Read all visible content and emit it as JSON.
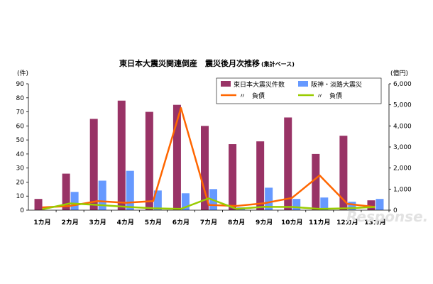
{
  "chart_data": {
    "type": "bar",
    "title": "東日本大震災関連倒産　震災後月次推移",
    "subtitle": "(集計ベース)",
    "ylabel_left": "(件)",
    "ylabel_right": "(億円)",
    "ylim_left": [
      0,
      90
    ],
    "ylim_right": [
      0,
      6000
    ],
    "yticks_left": [
      "0",
      "10",
      "20",
      "30",
      "40",
      "50",
      "60",
      "70",
      "80",
      "90"
    ],
    "yticks_right": [
      "0",
      "1,000",
      "2,000",
      "3,000",
      "4,000",
      "5,000",
      "6,000"
    ],
    "categories": [
      "1カ月",
      "2カ月",
      "3カ月",
      "4カ月",
      "5カ月",
      "6カ月",
      "7カ月",
      "8カ月",
      "9カ月",
      "10カ月",
      "11カ月",
      "12カ月",
      "13カ月"
    ],
    "series": [
      {
        "name": "東日本大震災件数",
        "kind": "bar",
        "axis": "left",
        "color": "#993366",
        "values": [
          8,
          26,
          65,
          78,
          70,
          75,
          60,
          47,
          49,
          66,
          40,
          53,
          7
        ]
      },
      {
        "name": "阪神・淡路大震災",
        "kind": "bar",
        "axis": "left",
        "color": "#6699ff",
        "values": [
          0,
          13,
          21,
          28,
          14,
          12,
          15,
          2,
          16,
          8,
          9,
          6,
          8
        ]
      },
      {
        "name": "〃　負債",
        "kind": "line",
        "axis": "right",
        "color": "#ff6600",
        "values": [
          130,
          200,
          430,
          350,
          430,
          4850,
          250,
          200,
          330,
          580,
          1650,
          300,
          150
        ]
      },
      {
        "name": "〃　負債",
        "kind": "line",
        "axis": "right",
        "color": "#99cc00",
        "values": [
          40,
          320,
          250,
          160,
          90,
          60,
          560,
          60,
          160,
          150,
          60,
          90,
          150
        ]
      }
    ],
    "legend_position": "top-right",
    "grid": false
  },
  "watermark": "Response."
}
